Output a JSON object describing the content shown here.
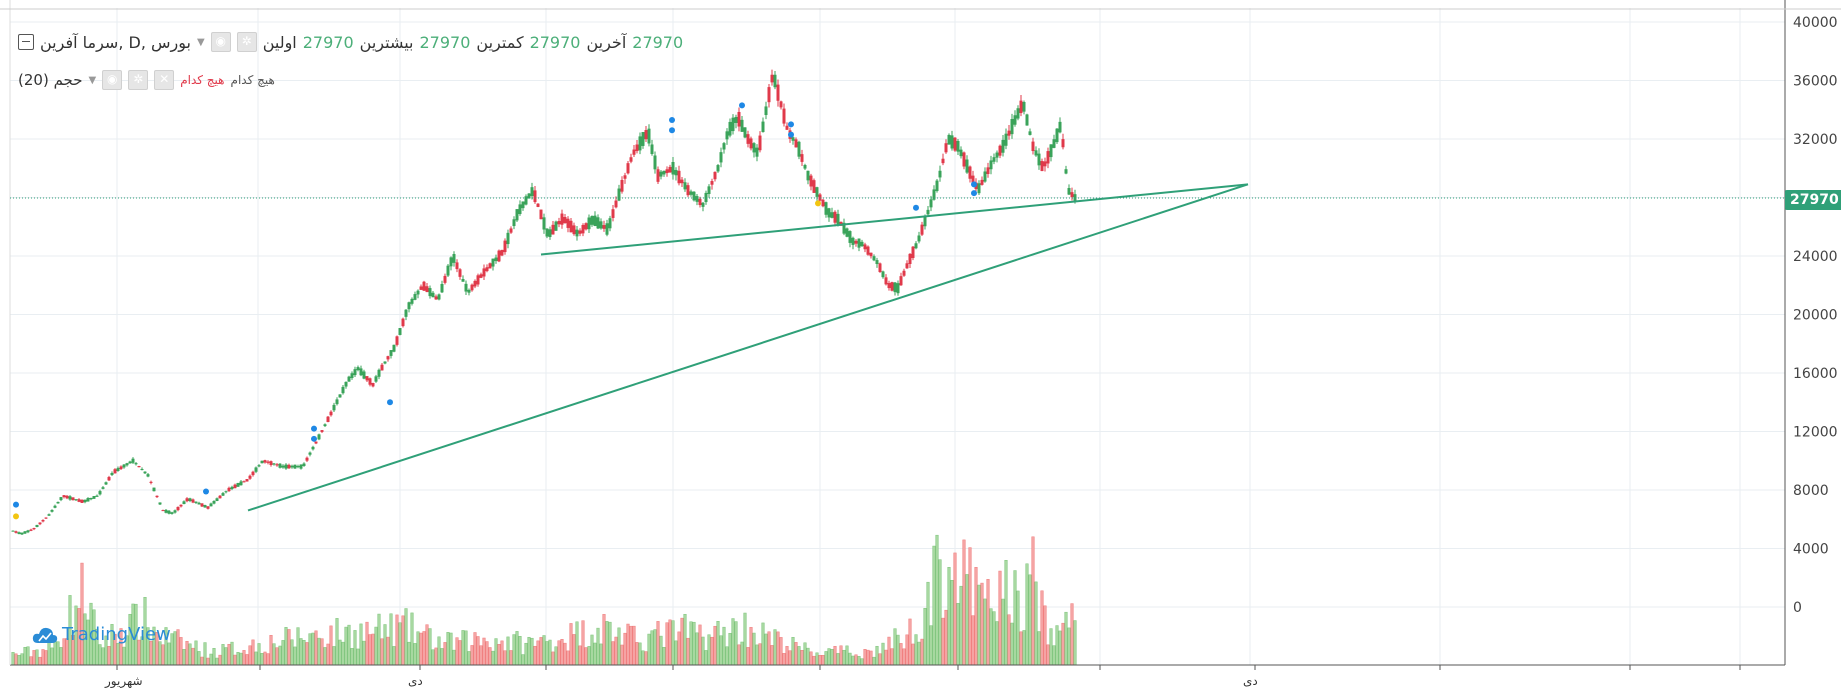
{
  "legend": {
    "symbol": "سرما آفرین, D, بورس",
    "open_label": "اولین",
    "open": "27970",
    "high_label": "بیشترین",
    "high": "27970",
    "low_label": "کمترین",
    "low": "27970",
    "close_label": "آخرین",
    "close": "27970",
    "volume_title": "حجم (20)",
    "indicator_red": "هیچ کدام",
    "indicator_gray": "هیچ کدام"
  },
  "price_badge": "27970",
  "brand": "TradingView",
  "colors": {
    "up": "#3aa35a",
    "down": "#e0394a",
    "vol_up": "#a7d8a0",
    "vol_down": "#f5a3a3",
    "trendline": "#2fa078",
    "grid": "#e9eef2",
    "dot_blue": "#1e88e5",
    "dot_yellow": "#f2c511"
  },
  "chart_data": {
    "type": "candlestick",
    "y_ticks": [
      "40000",
      "36000",
      "32000",
      "28000",
      "24000",
      "20000",
      "16000",
      "12000",
      "8000",
      "4000",
      "0"
    ],
    "x_ticks": [
      "شهریور",
      "دی",
      "دی"
    ],
    "last_price": 27970,
    "price_path_anchors": [
      [
        0,
        5200
      ],
      [
        8,
        5000
      ],
      [
        20,
        5300
      ],
      [
        35,
        6200
      ],
      [
        50,
        7600
      ],
      [
        70,
        7200
      ],
      [
        85,
        7600
      ],
      [
        100,
        9200
      ],
      [
        120,
        10000
      ],
      [
        135,
        9000
      ],
      [
        150,
        6600
      ],
      [
        160,
        6400
      ],
      [
        175,
        7400
      ],
      [
        195,
        6800
      ],
      [
        215,
        8000
      ],
      [
        235,
        8700
      ],
      [
        250,
        10000
      ],
      [
        270,
        9600
      ],
      [
        290,
        9600
      ],
      [
        305,
        11500
      ],
      [
        320,
        13500
      ],
      [
        335,
        15500
      ],
      [
        345,
        16300
      ],
      [
        360,
        15200
      ],
      [
        370,
        16500
      ],
      [
        382,
        17800
      ],
      [
        395,
        20500
      ],
      [
        410,
        22000
      ],
      [
        425,
        21000
      ],
      [
        440,
        24000
      ],
      [
        455,
        21500
      ],
      [
        470,
        22800
      ],
      [
        490,
        24300
      ],
      [
        505,
        27000
      ],
      [
        520,
        28500
      ],
      [
        535,
        25400
      ],
      [
        550,
        26600
      ],
      [
        565,
        25500
      ],
      [
        580,
        26500
      ],
      [
        595,
        25800
      ],
      [
        605,
        28000
      ],
      [
        620,
        31000
      ],
      [
        635,
        32500
      ],
      [
        645,
        29500
      ],
      [
        660,
        30000
      ],
      [
        675,
        28500
      ],
      [
        690,
        27500
      ],
      [
        705,
        30000
      ],
      [
        715,
        32500
      ],
      [
        725,
        33500
      ],
      [
        735,
        32000
      ],
      [
        745,
        31000
      ],
      [
        760,
        36500
      ],
      [
        775,
        32500
      ],
      [
        785,
        31500
      ],
      [
        795,
        29500
      ],
      [
        815,
        27000
      ],
      [
        825,
        26500
      ],
      [
        840,
        25000
      ],
      [
        850,
        24800
      ],
      [
        865,
        23500
      ],
      [
        875,
        22000
      ],
      [
        885,
        21800
      ],
      [
        895,
        23500
      ],
      [
        905,
        25000
      ],
      [
        915,
        27000
      ],
      [
        925,
        29000
      ],
      [
        935,
        32000
      ],
      [
        945,
        31500
      ],
      [
        955,
        30000
      ],
      [
        965,
        28500
      ],
      [
        980,
        30500
      ],
      [
        990,
        31500
      ],
      [
        1000,
        33000
      ],
      [
        1010,
        34500
      ],
      [
        1020,
        31500
      ],
      [
        1030,
        30000
      ],
      [
        1040,
        31500
      ],
      [
        1048,
        33000
      ],
      [
        1055,
        28500
      ],
      [
        1062,
        27970
      ]
    ],
    "volume_profile_anchors": [
      [
        0,
        12
      ],
      [
        40,
        20
      ],
      [
        72,
        90
      ],
      [
        85,
        25
      ],
      [
        130,
        55
      ],
      [
        145,
        35
      ],
      [
        200,
        15
      ],
      [
        300,
        35
      ],
      [
        370,
        40
      ],
      [
        390,
        45
      ],
      [
        430,
        25
      ],
      [
        470,
        30
      ],
      [
        520,
        25
      ],
      [
        560,
        35
      ],
      [
        590,
        45
      ],
      [
        620,
        30
      ],
      [
        670,
        40
      ],
      [
        700,
        35
      ],
      [
        730,
        45
      ],
      [
        760,
        30
      ],
      [
        800,
        15
      ],
      [
        860,
        15
      ],
      [
        900,
        40
      ],
      [
        935,
        130
      ],
      [
        950,
        100
      ],
      [
        975,
        70
      ],
      [
        990,
        90
      ],
      [
        1010,
        70
      ],
      [
        1020,
        110
      ],
      [
        1035,
        30
      ],
      [
        1062,
        60
      ]
    ],
    "trendlines": [
      {
        "from": [
          248,
          6600
        ],
        "to": [
          1248,
          28900
        ]
      },
      {
        "from": [
          541,
          24100
        ],
        "to": [
          1248,
          28900
        ]
      }
    ],
    "markers": [
      {
        "bar": 0,
        "price": 7000,
        "color": "blue"
      },
      {
        "bar": 0,
        "price": 6200,
        "color": "yellow"
      },
      {
        "bar": 190,
        "price": 7900,
        "color": "blue"
      },
      {
        "bar": 298,
        "price": 11500,
        "color": "blue"
      },
      {
        "bar": 298,
        "price": 12200,
        "color": "blue"
      },
      {
        "bar": 374,
        "price": 14000,
        "color": "blue"
      },
      {
        "bar": 656,
        "price": 32600,
        "color": "blue"
      },
      {
        "bar": 656,
        "price": 33300,
        "color": "blue"
      },
      {
        "bar": 726,
        "price": 34300,
        "color": "blue"
      },
      {
        "bar": 775,
        "price": 32300,
        "color": "blue"
      },
      {
        "bar": 775,
        "price": 33000,
        "color": "blue"
      },
      {
        "bar": 802,
        "price": 27600,
        "color": "yellow"
      },
      {
        "bar": 900,
        "price": 27300,
        "color": "blue"
      },
      {
        "bar": 958,
        "price": 28300,
        "color": "blue"
      },
      {
        "bar": 958,
        "price": 28900,
        "color": "blue"
      }
    ]
  }
}
